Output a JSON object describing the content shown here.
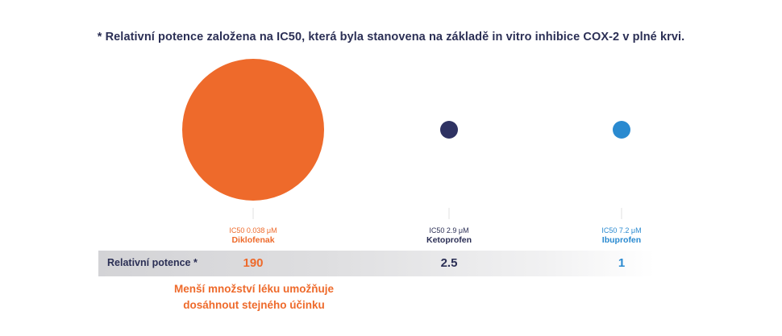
{
  "footnote": "* Relativní potence založena na IC50, která byla stanovena na základě in vitro inhibice COX-2 v plné krvi.",
  "row_label": "Relativní potence *",
  "note_lines": [
    "Menší množství léku umožňuje",
    "dosáhnout stejného účinku"
  ],
  "chart_data": {
    "type": "bubble",
    "title": "",
    "categories": [
      "Diklofenak",
      "Ketoprofen",
      "Ibuprofen"
    ],
    "ic50_labels": [
      "IC50 0.038 μM",
      "IC50 2.9 μM",
      "IC50 7.2 μM"
    ],
    "ic50_um": [
      0.038,
      2.9,
      7.2
    ],
    "relative_potency": [
      190,
      2.5,
      1
    ],
    "relative_potency_labels": [
      "190",
      "2.5",
      "1"
    ],
    "colors": [
      "#ee6a2b",
      "#2e3262",
      "#2a8ad0"
    ]
  }
}
